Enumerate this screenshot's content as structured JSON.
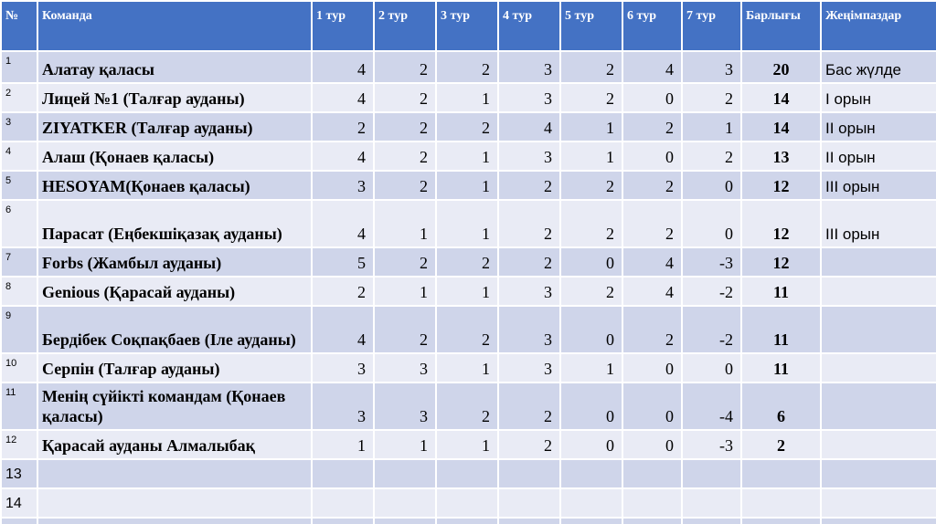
{
  "header": {
    "no": "№",
    "team": "Команда",
    "rounds": [
      "1 тур",
      "2 тур",
      "3 тур",
      "4 тур",
      "5 тур",
      "6 тур",
      "7 тур"
    ],
    "total": "Барлығы",
    "winner": "Жеңімпаздар"
  },
  "rows": [
    {
      "no": 1,
      "team": "Алатау қаласы",
      "rounds": [
        4,
        2,
        2,
        3,
        2,
        4,
        3
      ],
      "total": 20,
      "winner": "Бас жүлде"
    },
    {
      "no": 2,
      "team": "Лицей №1 (Талғар ауданы)",
      "rounds": [
        4,
        2,
        1,
        3,
        2,
        0,
        2
      ],
      "total": 14,
      "winner": "I орын"
    },
    {
      "no": 3,
      "team": "ZIYATKER (Талғар ауданы)",
      "rounds": [
        2,
        2,
        2,
        4,
        1,
        2,
        1
      ],
      "total": 14,
      "winner": "II орын"
    },
    {
      "no": 4,
      "team": "Алаш (Қонаев қаласы)",
      "rounds": [
        4,
        2,
        1,
        3,
        1,
        0,
        2
      ],
      "total": 13,
      "winner": "II орын"
    },
    {
      "no": 5,
      "team": "HESOYAM(Қонаев қаласы)",
      "rounds": [
        3,
        2,
        1,
        2,
        2,
        2,
        0
      ],
      "total": 12,
      "winner": "III орын"
    },
    {
      "no": 6,
      "team": "Парасат (Еңбекшіқазақ ауданы)",
      "rounds": [
        4,
        1,
        1,
        2,
        2,
        2,
        0
      ],
      "total": 12,
      "winner": "III орын"
    },
    {
      "no": 7,
      "team": "Forbs (Жамбыл ауданы)",
      "rounds": [
        5,
        2,
        2,
        2,
        0,
        4,
        -3
      ],
      "total": 12
    },
    {
      "no": 8,
      "team": "Geniоus (Қарасай ауданы)",
      "rounds": [
        2,
        1,
        1,
        3,
        2,
        4,
        -2
      ],
      "total": 11
    },
    {
      "no": 9,
      "team": "Бердібек Соқпақбаев (Іле ауданы)",
      "rounds": [
        4,
        2,
        2,
        3,
        0,
        2,
        -2
      ],
      "total": 11
    },
    {
      "no": 10,
      "team": "Серпін (Талғар ауданы)",
      "rounds": [
        3,
        3,
        1,
        3,
        1,
        0,
        0
      ],
      "total": 11
    },
    {
      "no": 11,
      "team": "Менің сүйікті командам (Қонаев қаласы)",
      "rounds": [
        3,
        3,
        2,
        2,
        0,
        0,
        -4
      ],
      "total": 6
    },
    {
      "no": 12,
      "team": "Қарасай ауданы Алмалыбақ",
      "rounds": [
        1,
        1,
        1,
        2,
        0,
        0,
        -3
      ],
      "total": 2
    },
    {
      "no": 13
    },
    {
      "no": 14
    }
  ]
}
